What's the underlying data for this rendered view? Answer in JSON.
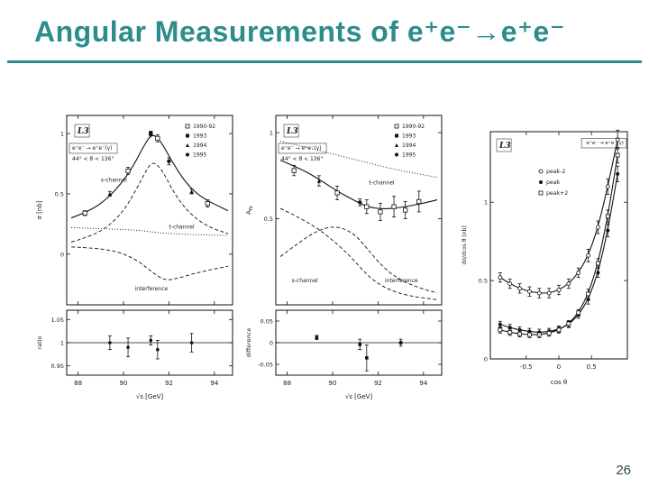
{
  "slide": {
    "title": "Angular Measurements of e⁺e⁻→e⁺e⁻",
    "page_number": "26",
    "accent_color": "#2d8c8c"
  },
  "chart_data": [
    {
      "type": "line",
      "panel": "cross-section-vs-energy",
      "corner_label": "L3",
      "process": "e⁺e⁻ → e⁺e⁻(γ)",
      "angle_cut": "44° < θ < 136°",
      "xlabel": "√s [GeV]",
      "ylabel": "σ [nb]",
      "sub_ylabel": "ratio",
      "xlim": [
        87.5,
        94.8
      ],
      "ylim": [
        -0.42,
        1.15
      ],
      "xticks": [
        88,
        90,
        92,
        94
      ],
      "yticks": [
        0,
        0.5,
        1
      ],
      "sub_ylim": [
        0.93,
        1.07
      ],
      "sub_yticks": [
        0.95,
        1,
        1.05
      ],
      "sub_ref": 1,
      "legend": [
        {
          "label": "1990-92",
          "marker": "open-square"
        },
        {
          "label": "1993",
          "marker": "filled-square"
        },
        {
          "label": "1994",
          "marker": "filled-triangle"
        },
        {
          "label": "1995",
          "marker": "filled-circle"
        }
      ],
      "curves": [
        {
          "name": "total",
          "style": "solid",
          "points": [
            [
              87.7,
              0.3
            ],
            [
              88.4,
              0.35
            ],
            [
              89.1,
              0.43
            ],
            [
              89.8,
              0.56
            ],
            [
              90.4,
              0.72
            ],
            [
              90.9,
              0.9
            ],
            [
              91.25,
              1.0
            ],
            [
              91.6,
              0.95
            ],
            [
              92.1,
              0.78
            ],
            [
              92.7,
              0.6
            ],
            [
              93.4,
              0.47
            ],
            [
              94.6,
              0.36
            ]
          ]
        },
        {
          "name": "s-channel",
          "style": "dashed",
          "label_at": [
            89.0,
            0.6
          ],
          "points": [
            [
              87.7,
              0.1
            ],
            [
              88.6,
              0.15
            ],
            [
              89.4,
              0.24
            ],
            [
              90.1,
              0.38
            ],
            [
              90.8,
              0.62
            ],
            [
              91.25,
              0.78
            ],
            [
              91.7,
              0.7
            ],
            [
              92.3,
              0.48
            ],
            [
              93.0,
              0.32
            ],
            [
              93.8,
              0.22
            ],
            [
              94.6,
              0.17
            ]
          ]
        },
        {
          "name": "t-channel",
          "style": "dotted",
          "label_at": [
            92.0,
            0.21
          ],
          "points": [
            [
              87.7,
              0.22
            ],
            [
              89.2,
              0.21
            ],
            [
              90.6,
              0.2
            ],
            [
              91.4,
              0.18
            ],
            [
              92.2,
              0.17
            ],
            [
              93.4,
              0.16
            ],
            [
              94.6,
              0.155
            ]
          ]
        },
        {
          "name": "interference",
          "style": "dashed",
          "label_at": [
            90.5,
            -0.3
          ],
          "points": [
            [
              87.7,
              0.06
            ],
            [
              88.8,
              0.05
            ],
            [
              89.8,
              0.02
            ],
            [
              90.6,
              -0.05
            ],
            [
              91.2,
              -0.14
            ],
            [
              91.8,
              -0.22
            ],
            [
              92.4,
              -0.2
            ],
            [
              93.3,
              -0.15
            ],
            [
              94.6,
              -0.1
            ]
          ]
        }
      ],
      "points": [
        {
          "x": 88.3,
          "y": 0.34,
          "ey": 0.02,
          "marker": "open-square"
        },
        {
          "x": 89.4,
          "y": 0.5,
          "ey": 0.02,
          "marker": "filled-triangle"
        },
        {
          "x": 90.2,
          "y": 0.69,
          "ey": 0.03,
          "marker": "open-square"
        },
        {
          "x": 91.2,
          "y": 1.0,
          "ey": 0.02,
          "marker": "filled-square"
        },
        {
          "x": 91.5,
          "y": 0.96,
          "ey": 0.03,
          "marker": "open-square"
        },
        {
          "x": 92.0,
          "y": 0.77,
          "ey": 0.03,
          "marker": "filled-circle"
        },
        {
          "x": 93.0,
          "y": 0.52,
          "ey": 0.02,
          "marker": "filled-triangle"
        },
        {
          "x": 93.7,
          "y": 0.42,
          "ey": 0.03,
          "marker": "open-square"
        }
      ],
      "sub_points": [
        {
          "x": 89.4,
          "y": 1.0,
          "ey": 0.015,
          "marker": "filled-circle"
        },
        {
          "x": 90.2,
          "y": 0.99,
          "ey": 0.02,
          "marker": "filled-circle"
        },
        {
          "x": 91.2,
          "y": 1.005,
          "ey": 0.01,
          "marker": "filled-circle"
        },
        {
          "x": 91.5,
          "y": 0.985,
          "ey": 0.02,
          "marker": "filled-circle"
        },
        {
          "x": 93.0,
          "y": 1.0,
          "ey": 0.02,
          "marker": "filled-circle"
        }
      ]
    },
    {
      "type": "line",
      "panel": "forward-backward-asymmetry-vs-energy",
      "corner_label": "L3",
      "process": "e⁺e⁻ → e⁺e⁻(γ)",
      "angle_cut": "44° < θ < 136°",
      "xlabel": "√s [GeV]",
      "ylabel": "A_{fb}",
      "sub_ylabel": "difference",
      "xlim": [
        87.5,
        94.8
      ],
      "ylim": [
        0,
        1.1
      ],
      "xticks": [
        88,
        90,
        92,
        94
      ],
      "yticks": [
        0.5,
        1
      ],
      "sub_ylim": [
        -0.075,
        0.075
      ],
      "sub_yticks": [
        -0.05,
        0,
        0.05
      ],
      "sub_ref": 0,
      "legend": [
        {
          "label": "1990-92",
          "marker": "open-square"
        },
        {
          "label": "1993",
          "marker": "filled-square"
        },
        {
          "label": "1994",
          "marker": "filled-triangle"
        },
        {
          "label": "1995",
          "marker": "filled-circle"
        }
      ],
      "curves": [
        {
          "name": "total",
          "style": "solid",
          "points": [
            [
              87.7,
              0.84
            ],
            [
              88.6,
              0.79
            ],
            [
              89.4,
              0.73
            ],
            [
              90.2,
              0.66
            ],
            [
              90.9,
              0.61
            ],
            [
              91.5,
              0.57
            ],
            [
              92.2,
              0.555
            ],
            [
              93.0,
              0.565
            ],
            [
              94.0,
              0.59
            ],
            [
              94.6,
              0.61
            ]
          ]
        },
        {
          "name": "t-channel",
          "style": "dotted",
          "label_at": [
            91.6,
            0.7
          ],
          "points": [
            [
              87.7,
              0.95
            ],
            [
              89.0,
              0.91
            ],
            [
              90.2,
              0.87
            ],
            [
              91.4,
              0.83
            ],
            [
              92.6,
              0.79
            ],
            [
              93.8,
              0.76
            ],
            [
              94.6,
              0.74
            ]
          ]
        },
        {
          "name": "s-channel",
          "style": "dashed",
          "label_at": [
            88.2,
            0.13
          ],
          "points": [
            [
              87.7,
              0.28
            ],
            [
              88.5,
              0.36
            ],
            [
              89.3,
              0.43
            ],
            [
              90.1,
              0.46
            ],
            [
              90.9,
              0.42
            ],
            [
              91.5,
              0.33
            ],
            [
              92.2,
              0.22
            ],
            [
              93.0,
              0.14
            ],
            [
              94.0,
              0.09
            ],
            [
              94.6,
              0.07
            ]
          ]
        },
        {
          "name": "interference",
          "style": "dashed",
          "label_at": [
            92.3,
            0.13
          ],
          "points": [
            [
              87.7,
              0.56
            ],
            [
              88.8,
              0.49
            ],
            [
              89.8,
              0.4
            ],
            [
              90.8,
              0.28
            ],
            [
              91.6,
              0.16
            ],
            [
              92.4,
              0.09
            ],
            [
              93.4,
              0.05
            ],
            [
              94.6,
              0.03
            ]
          ]
        }
      ],
      "points": [
        {
          "x": 88.3,
          "y": 0.78,
          "ey": 0.03,
          "marker": "open-square"
        },
        {
          "x": 89.4,
          "y": 0.72,
          "ey": 0.03,
          "marker": "filled-triangle"
        },
        {
          "x": 90.2,
          "y": 0.65,
          "ey": 0.04,
          "marker": "open-square"
        },
        {
          "x": 91.2,
          "y": 0.595,
          "ey": 0.02,
          "marker": "filled-circle"
        },
        {
          "x": 91.5,
          "y": 0.57,
          "ey": 0.04,
          "marker": "open-square"
        },
        {
          "x": 92.1,
          "y": 0.54,
          "ey": 0.05,
          "marker": "open-square"
        },
        {
          "x": 92.7,
          "y": 0.57,
          "ey": 0.06,
          "marker": "open-square"
        },
        {
          "x": 93.2,
          "y": 0.55,
          "ey": 0.05,
          "marker": "open-square"
        },
        {
          "x": 93.8,
          "y": 0.6,
          "ey": 0.06,
          "marker": "open-square"
        }
      ],
      "sub_points": [
        {
          "x": 89.3,
          "y": 0.012,
          "ey": 0.005,
          "marker": "filled-square"
        },
        {
          "x": 91.2,
          "y": -0.004,
          "ey": 0.012,
          "marker": "filled-square"
        },
        {
          "x": 91.5,
          "y": -0.035,
          "ey": 0.03,
          "marker": "filled-square"
        },
        {
          "x": 93.0,
          "y": 0.0,
          "ey": 0.008,
          "marker": "filled-square"
        }
      ]
    },
    {
      "type": "scatter",
      "panel": "differential-cross-section-vs-cos-theta",
      "corner_label": "L3",
      "process": "e⁺e⁻ → e⁺e⁻(γ)",
      "xlabel": "cos θ",
      "ylabel": "dσ/dcos θ [nb]",
      "xlim": [
        -1.05,
        1.05
      ],
      "ylim": [
        0,
        1.45
      ],
      "xticks": [
        -0.5,
        0,
        0.5
      ],
      "yticks": [
        0,
        0.5,
        1
      ],
      "legend": [
        {
          "label": "peak-2",
          "marker": "open-circle"
        },
        {
          "label": "peak",
          "marker": "filled-circle"
        },
        {
          "label": "peak+2",
          "marker": "open-square"
        }
      ],
      "series": [
        {
          "name": "peak-2",
          "marker": "open-circle",
          "points": [
            [
              -0.9,
              0.52,
              0.03
            ],
            [
              -0.75,
              0.48,
              0.03
            ],
            [
              -0.6,
              0.45,
              0.03
            ],
            [
              -0.45,
              0.43,
              0.03
            ],
            [
              -0.3,
              0.42,
              0.03
            ],
            [
              -0.15,
              0.42,
              0.03
            ],
            [
              0,
              0.44,
              0.03
            ],
            [
              0.15,
              0.48,
              0.03
            ],
            [
              0.3,
              0.55,
              0.03
            ],
            [
              0.45,
              0.66,
              0.04
            ],
            [
              0.6,
              0.84,
              0.04
            ],
            [
              0.75,
              1.1,
              0.05
            ],
            [
              0.9,
              1.4,
              0.06
            ]
          ]
        },
        {
          "name": "peak",
          "marker": "filled-circle",
          "points": [
            [
              -0.9,
              0.22,
              0.02
            ],
            [
              -0.75,
              0.2,
              0.02
            ],
            [
              -0.6,
              0.185,
              0.02
            ],
            [
              -0.45,
              0.175,
              0.02
            ],
            [
              -0.3,
              0.17,
              0.02
            ],
            [
              -0.15,
              0.175,
              0.02
            ],
            [
              0,
              0.19,
              0.02
            ],
            [
              0.15,
              0.22,
              0.02
            ],
            [
              0.3,
              0.28,
              0.02
            ],
            [
              0.45,
              0.38,
              0.03
            ],
            [
              0.6,
              0.55,
              0.03
            ],
            [
              0.75,
              0.82,
              0.04
            ],
            [
              0.9,
              1.18,
              0.05
            ]
          ]
        },
        {
          "name": "peak+2",
          "marker": "open-square",
          "points": [
            [
              -0.9,
              0.185,
              0.02
            ],
            [
              -0.75,
              0.17,
              0.02
            ],
            [
              -0.6,
              0.16,
              0.02
            ],
            [
              -0.45,
              0.155,
              0.02
            ],
            [
              -0.3,
              0.155,
              0.02
            ],
            [
              -0.15,
              0.165,
              0.02
            ],
            [
              0,
              0.185,
              0.02
            ],
            [
              0.15,
              0.225,
              0.02
            ],
            [
              0.3,
              0.295,
              0.02
            ],
            [
              0.45,
              0.415,
              0.03
            ],
            [
              0.6,
              0.61,
              0.03
            ],
            [
              0.75,
              0.91,
              0.04
            ],
            [
              0.9,
              1.3,
              0.05
            ]
          ]
        }
      ]
    }
  ]
}
